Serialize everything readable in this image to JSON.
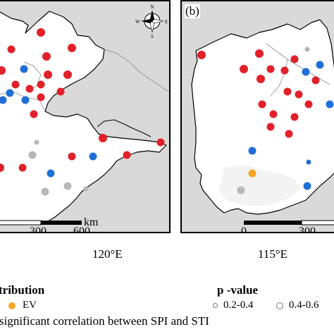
{
  "panels": {
    "a": {
      "tag": "",
      "scale_ticks": [
        "300",
        "600"
      ],
      "scale_unit": "km",
      "axis_label": "120°E",
      "compass_letters": {
        "n": "N",
        "s": "S",
        "e": "E",
        "w": "W"
      }
    },
    "b": {
      "tag": "(b)",
      "scale_ticks": [
        "0",
        "300"
      ],
      "axis_label": "115°E"
    }
  },
  "legend": {
    "distribution_title": "tribution",
    "ev_label": "EV",
    "p_value_title": "p -value",
    "p_value_items": [
      "0.2-0.4",
      "0.4-0.6"
    ]
  },
  "note": "significant correlation between SPI and STI",
  "colors": {
    "red": "#e2202a",
    "blue": "#1f6fd6",
    "gray": "#b8b8b8",
    "orange": "#f5a623",
    "land": "#ffffff",
    "outside": "#d9d9d9"
  },
  "stations": {
    "a": [
      {
        "c": "red",
        "r": "lg"
      },
      {
        "c": "red",
        "r": "md"
      },
      {
        "c": "red",
        "r": "lg"
      },
      {
        "c": "red",
        "r": "lg"
      },
      {
        "c": "blue",
        "r": "md"
      },
      {
        "c": "red",
        "r": "lg"
      },
      {
        "c": "red",
        "r": "lg"
      },
      {
        "c": "red",
        "r": "md"
      },
      {
        "c": "red",
        "r": "md"
      },
      {
        "c": "red",
        "r": "md"
      },
      {
        "c": "red",
        "r": "lg"
      },
      {
        "c": "blue",
        "r": "md"
      },
      {
        "c": "blue",
        "r": "md"
      },
      {
        "c": "red",
        "r": "md"
      },
      {
        "c": "red",
        "r": "md"
      },
      {
        "c": "blue",
        "r": "md"
      },
      {
        "c": "red",
        "r": "md"
      },
      {
        "c": "gray",
        "r": "sm"
      },
      {
        "c": "red",
        "r": "lg"
      },
      {
        "c": "red",
        "r": "md"
      },
      {
        "c": "gray",
        "r": "md"
      },
      {
        "c": "red",
        "r": "md"
      },
      {
        "c": "red",
        "r": "md"
      },
      {
        "c": "blue",
        "r": "md"
      },
      {
        "c": "red",
        "r": "lg"
      },
      {
        "c": "red",
        "r": "md"
      },
      {
        "c": "blue",
        "r": "md"
      },
      {
        "c": "gray",
        "r": "md"
      },
      {
        "c": "gray",
        "r": "md"
      },
      {
        "c": "gray",
        "r": "sm"
      }
    ],
    "b": [
      {
        "c": "red",
        "r": "lg"
      },
      {
        "c": "gray",
        "r": "sm"
      },
      {
        "c": "red",
        "r": "lg"
      },
      {
        "c": "red",
        "r": "md"
      },
      {
        "c": "red",
        "r": "lg"
      },
      {
        "c": "red",
        "r": "md"
      },
      {
        "c": "red",
        "r": "md"
      },
      {
        "c": "red",
        "r": "lg"
      },
      {
        "c": "blue",
        "r": "md"
      },
      {
        "c": "red",
        "r": "md"
      },
      {
        "c": "blue",
        "r": "md"
      },
      {
        "c": "red",
        "r": "md"
      },
      {
        "c": "red",
        "r": "md"
      },
      {
        "c": "red",
        "r": "md"
      },
      {
        "c": "red",
        "r": "md"
      },
      {
        "c": "red",
        "r": "md"
      },
      {
        "c": "red",
        "r": "md"
      },
      {
        "c": "red",
        "r": "md"
      },
      {
        "c": "red",
        "r": "md"
      },
      {
        "c": "blue",
        "r": "md"
      },
      {
        "c": "blue",
        "r": "sm"
      },
      {
        "c": "orange",
        "r": "md"
      },
      {
        "c": "blue",
        "r": "md"
      },
      {
        "c": "gray",
        "r": "md"
      },
      {
        "c": "blue",
        "r": "md"
      }
    ]
  }
}
